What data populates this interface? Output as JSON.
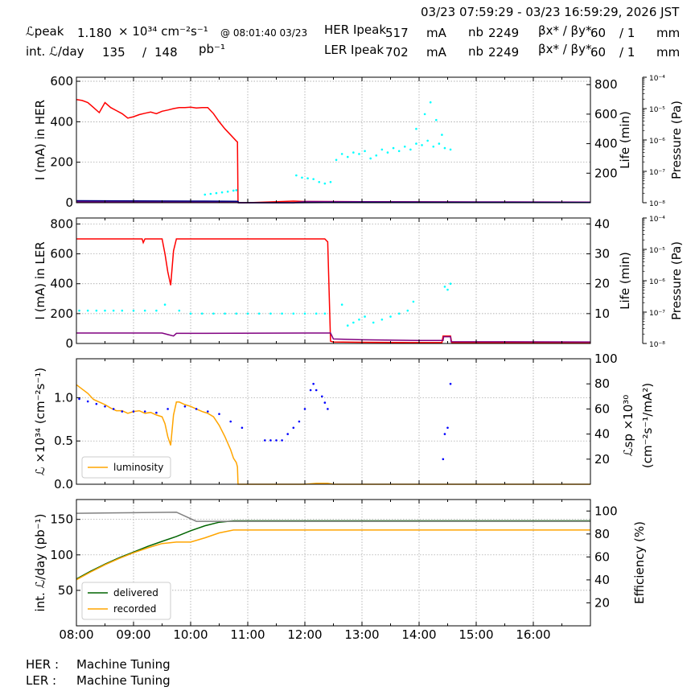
{
  "header": {
    "time_range": "03/23 07:59:29 - 03/23 16:59:29, 2026 JST",
    "lpeak_label": "ℒpeak",
    "lpeak_value": "1.180",
    "lpeak_unit": "× 10³⁴ cm⁻²s⁻¹",
    "lpeak_time": "@ 08:01:40 03/23",
    "intl_label": "int. ℒ/day",
    "intl_recorded": "135",
    "intl_slash": "/",
    "intl_delivered": "148",
    "intl_unit": "pb⁻¹",
    "her_label": "HER Ipeak",
    "her_value": "517",
    "ler_label": "LER Ipeak",
    "ler_value": "702",
    "current_unit": "mA",
    "nb_label": "nb",
    "her_nb": "2249",
    "ler_nb": "2249",
    "beta_label": "βx* / βy*",
    "her_beta_x": "60",
    "her_beta_y": "/ 1",
    "ler_beta_x": "60",
    "ler_beta_y": "/ 1",
    "beta_unit": "mm"
  },
  "footer": {
    "her_label": "HER :",
    "her_status": "Machine Tuning",
    "ler_label": "LER :",
    "ler_status": "Machine Tuning"
  },
  "chart_data": [
    {
      "type": "line",
      "ylabel": "I (mA) in HER",
      "ylim": [
        0,
        620
      ],
      "yticks": [
        0,
        200,
        400,
        600
      ],
      "y2label": "Life (min)",
      "y2lim": [
        0,
        850
      ],
      "y2ticks": [
        200,
        400,
        600,
        800
      ],
      "y3label": "Pressure (Pa)",
      "y3ticks": [
        "10⁻⁴",
        "10⁻⁵",
        "10⁻⁶",
        "10⁻⁷",
        "10⁻⁸"
      ],
      "grid": true,
      "xlim": [
        8.0,
        17.0
      ],
      "series": [
        {
          "role": "current",
          "color": "#ff0000",
          "x": [
            8.0,
            8.1,
            8.2,
            8.3,
            8.4,
            8.5,
            8.6,
            8.7,
            8.8,
            8.9,
            9.0,
            9.1,
            9.2,
            9.3,
            9.4,
            9.5,
            9.6,
            9.7,
            9.8,
            9.9,
            10.0,
            10.1,
            10.2,
            10.3,
            10.4,
            10.5,
            10.6,
            10.7,
            10.8,
            10.82,
            10.83,
            11.0,
            11.8,
            12.0,
            13.0,
            14.0,
            15.0,
            16.0,
            17.0
          ],
          "values": [
            510,
            505,
            495,
            470,
            445,
            495,
            470,
            455,
            440,
            418,
            425,
            435,
            442,
            448,
            440,
            452,
            458,
            465,
            470,
            470,
            472,
            468,
            470,
            470,
            440,
            400,
            365,
            335,
            305,
            300,
            0,
            0,
            8,
            6,
            5,
            4,
            3,
            3,
            2
          ]
        },
        {
          "role": "purple",
          "color": "#800080",
          "x": [
            8.0,
            10.83,
            10.84,
            11.8,
            12.0,
            13.0,
            15.0,
            17.0
          ],
          "values": [
            5,
            5,
            0,
            0,
            6,
            5,
            4,
            3
          ]
        },
        {
          "role": "navy",
          "color": "#000080",
          "x": [
            8.0,
            9.0,
            10.0,
            10.83,
            10.84,
            11.8,
            13.0,
            17.0
          ],
          "values": [
            10,
            9,
            8,
            7,
            0,
            0,
            2,
            1
          ]
        },
        {
          "role": "lifetime",
          "color": "#00ffff",
          "marker": "dot",
          "x": [
            10.25,
            10.35,
            10.45,
            10.55,
            10.65,
            10.75,
            10.8,
            11.85,
            11.95,
            12.05,
            12.15,
            12.25,
            12.35,
            12.45,
            12.55,
            12.65,
            12.75,
            12.85,
            12.95,
            13.05,
            13.15,
            13.25,
            13.35,
            13.45,
            13.55,
            13.65,
            13.75,
            13.85,
            13.95,
            14.05,
            14.15,
            14.25,
            14.35,
            14.45,
            14.55,
            13.95,
            14.1,
            14.2,
            14.3,
            14.4
          ],
          "values": [
            55,
            60,
            65,
            70,
            75,
            82,
            85,
            185,
            170,
            165,
            160,
            140,
            130,
            140,
            290,
            330,
            310,
            340,
            330,
            350,
            300,
            320,
            360,
            340,
            370,
            350,
            380,
            360,
            400,
            390,
            420,
            380,
            400,
            370,
            360,
            500,
            600,
            680,
            560,
            460
          ]
        }
      ]
    },
    {
      "type": "line",
      "ylabel": "I (mA) in LER",
      "ylim": [
        0,
        840
      ],
      "yticks": [
        0,
        200,
        400,
        600,
        800
      ],
      "y2label": "Life (min)",
      "y2lim": [
        0,
        42
      ],
      "y2ticks": [
        10,
        20,
        30,
        40
      ],
      "y3label": "Pressure (Pa)",
      "y3ticks": [
        "10⁻⁴",
        "10⁻⁵",
        "10⁻⁶",
        "10⁻⁷",
        "10⁻⁸"
      ],
      "grid": true,
      "xlim": [
        8.0,
        17.0
      ],
      "series": [
        {
          "role": "current",
          "color": "#ff0000",
          "x": [
            8.0,
            9.0,
            9.15,
            9.17,
            9.2,
            9.5,
            9.55,
            9.6,
            9.65,
            9.7,
            9.75,
            10.0,
            11.0,
            12.0,
            12.35,
            12.4,
            12.45,
            12.5,
            13.0,
            14.0,
            14.4,
            14.42,
            14.55,
            14.57,
            15.0,
            17.0
          ],
          "values": [
            700,
            700,
            700,
            675,
            700,
            700,
            600,
            480,
            390,
            620,
            700,
            700,
            700,
            700,
            700,
            680,
            15,
            10,
            8,
            6,
            6,
            50,
            50,
            6,
            6,
            5
          ]
        },
        {
          "role": "purple",
          "color": "#800080",
          "x": [
            8.0,
            9.5,
            9.6,
            9.7,
            9.75,
            12.3,
            12.45,
            12.5,
            13.0,
            14.0,
            14.42,
            14.43,
            14.55,
            14.56,
            17.0
          ],
          "values": [
            70,
            70,
            60,
            50,
            68,
            70,
            70,
            30,
            25,
            20,
            20,
            45,
            45,
            12,
            10
          ]
        },
        {
          "role": "lifetime",
          "color": "#00ffff",
          "marker": "dot",
          "x": [
            8.05,
            8.2,
            8.35,
            8.5,
            8.65,
            8.8,
            9.0,
            9.2,
            9.4,
            9.55,
            9.8,
            10.0,
            10.2,
            10.4,
            10.6,
            10.8,
            11.0,
            11.2,
            11.4,
            11.6,
            11.8,
            12.0,
            12.2,
            12.35,
            12.65,
            12.75,
            12.85,
            12.95,
            13.05,
            13.2,
            13.35,
            13.5,
            13.65,
            13.8,
            13.9,
            14.45,
            14.5,
            14.55
          ],
          "values": [
            11,
            11,
            11,
            11,
            11,
            11,
            11,
            11,
            11,
            13,
            11,
            10,
            10,
            10,
            10,
            10,
            10,
            10,
            10,
            10,
            10,
            10,
            10,
            10,
            13,
            6,
            7,
            8,
            9,
            7,
            8,
            9,
            10,
            11,
            14,
            19,
            18,
            20
          ]
        }
      ]
    },
    {
      "type": "line",
      "ylabel": "ℒ ×10³⁴ (cm⁻²s⁻¹)",
      "ylim": [
        0.0,
        1.45
      ],
      "yticks": [
        0.0,
        0.5,
        1.0
      ],
      "y2label": "ℒsp ×10³⁰",
      "y2label_line2": "(cm⁻²s⁻¹/mA²)",
      "y2lim": [
        0,
        100
      ],
      "y2ticks": [
        20,
        40,
        60,
        80,
        100
      ],
      "grid": true,
      "legend": "bottom-left",
      "xlim": [
        8.0,
        17.0
      ],
      "series": [
        {
          "name": "luminosity",
          "color": "#ffa500",
          "x": [
            8.0,
            8.1,
            8.2,
            8.3,
            8.4,
            8.5,
            8.6,
            8.7,
            8.8,
            8.9,
            9.0,
            9.1,
            9.2,
            9.3,
            9.4,
            9.5,
            9.55,
            9.6,
            9.65,
            9.7,
            9.75,
            9.8,
            9.9,
            10.0,
            10.1,
            10.2,
            10.3,
            10.4,
            10.5,
            10.6,
            10.7,
            10.75,
            10.8,
            10.82,
            10.83,
            11.0,
            12.0,
            12.2,
            12.4,
            12.5,
            13.0,
            17.0
          ],
          "values": [
            1.15,
            1.1,
            1.05,
            0.98,
            0.95,
            0.92,
            0.88,
            0.85,
            0.85,
            0.82,
            0.84,
            0.85,
            0.82,
            0.83,
            0.8,
            0.78,
            0.7,
            0.55,
            0.45,
            0.8,
            0.95,
            0.95,
            0.92,
            0.9,
            0.87,
            0.84,
            0.82,
            0.78,
            0.68,
            0.55,
            0.4,
            0.3,
            0.25,
            0.2,
            0.0,
            0.0,
            0.0,
            0.01,
            0.01,
            0.0,
            0.0,
            0.0
          ]
        },
        {
          "role": "specific",
          "color": "#0000ff",
          "marker": "dot",
          "x": [
            8.05,
            8.2,
            8.35,
            8.5,
            8.65,
            8.8,
            9.0,
            9.2,
            9.4,
            9.6,
            9.9,
            10.1,
            10.3,
            10.5,
            10.7,
            10.9,
            11.3,
            11.4,
            11.5,
            11.6,
            11.7,
            11.8,
            11.9,
            12.0,
            12.1,
            12.15,
            12.2,
            12.3,
            12.35,
            12.4,
            14.42,
            14.45,
            14.5,
            14.55
          ],
          "values": [
            68,
            66,
            64,
            62,
            60,
            58,
            58,
            58,
            57,
            60,
            62,
            60,
            58,
            56,
            50,
            45,
            35,
            35,
            35,
            35,
            40,
            45,
            50,
            60,
            75,
            80,
            75,
            70,
            65,
            60,
            20,
            40,
            45,
            80
          ]
        }
      ]
    },
    {
      "type": "line",
      "ylabel": "int. ℒ/day (pb⁻¹)",
      "ylim": [
        0,
        178
      ],
      "yticks": [
        50,
        100,
        150
      ],
      "y2label": "Efficiency (%)",
      "y2lim": [
        0,
        110
      ],
      "y2ticks": [
        20,
        40,
        60,
        80,
        100
      ],
      "grid": true,
      "legend": "bottom-left",
      "xlim": [
        8.0,
        17.0
      ],
      "xticks": [
        "08:00",
        "09:00",
        "10:00",
        "11:00",
        "12:00",
        "13:00",
        "14:00",
        "15:00",
        "16:00"
      ],
      "series": [
        {
          "name": "delivered",
          "color": "#006400",
          "x": [
            8.0,
            8.25,
            8.5,
            8.75,
            9.0,
            9.25,
            9.5,
            9.75,
            10.0,
            10.25,
            10.5,
            10.75,
            11.0,
            12.0,
            13.0,
            14.0,
            15.0,
            16.0,
            17.0
          ],
          "values": [
            66,
            77,
            87,
            96,
            104,
            112,
            119,
            126,
            134,
            141,
            146,
            148,
            148,
            148,
            148,
            148,
            148,
            148,
            148
          ]
        },
        {
          "name": "recorded",
          "color": "#ffa500",
          "x": [
            8.0,
            8.25,
            8.5,
            8.75,
            9.0,
            9.25,
            9.5,
            9.75,
            10.0,
            10.25,
            10.5,
            10.75,
            11.0,
            12.0,
            13.0,
            14.0,
            15.0,
            16.0,
            17.0
          ],
          "values": [
            65,
            76,
            86,
            95,
            103,
            110,
            116,
            118,
            118,
            124,
            131,
            135,
            135,
            135,
            135,
            135,
            135,
            135,
            135
          ]
        },
        {
          "role": "efficiency",
          "color": "#808080",
          "axis": "right",
          "x": [
            8.0,
            9.0,
            9.75,
            10.1,
            11.0,
            17.0
          ],
          "values": [
            98,
            98.5,
            99,
            91,
            91,
            91
          ]
        }
      ]
    }
  ]
}
